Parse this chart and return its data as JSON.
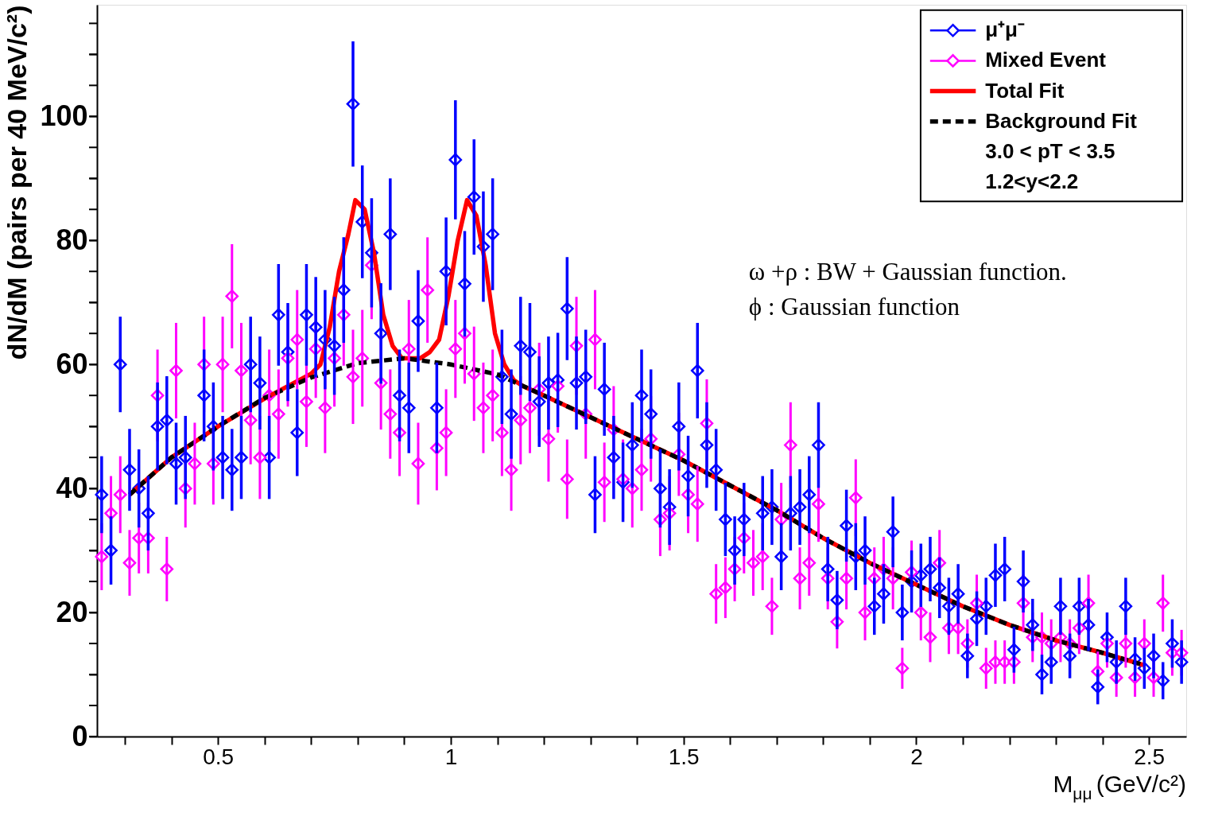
{
  "chart_data": {
    "type": "scatter",
    "xlabel": "M$_{μμ}$ (GeV/c²)",
    "ylabel": "dN/dM (pairs per 40 MeV/c²)",
    "xlim": [
      0.24,
      2.58
    ],
    "ylim": [
      0,
      118
    ],
    "xticks": [
      {
        "value": 0.3,
        "label": null
      },
      {
        "value": 0.4,
        "label": null
      },
      0.5,
      {
        "value": 0.6,
        "label": null
      },
      {
        "value": 0.7,
        "label": null
      },
      {
        "value": 0.8,
        "label": null
      },
      {
        "value": 0.9,
        "label": null
      },
      1,
      {
        "value": 1.1,
        "label": null
      },
      {
        "value": 1.2,
        "label": null
      },
      {
        "value": 1.3,
        "label": null
      },
      {
        "value": 1.4,
        "label": null
      },
      1.5,
      {
        "value": 1.6,
        "label": null
      },
      {
        "value": 1.7,
        "label": null
      },
      {
        "value": 1.8,
        "label": null
      },
      {
        "value": 1.9,
        "label": null
      },
      2,
      {
        "value": 2.1,
        "label": null
      },
      {
        "value": 2.2,
        "label": null
      },
      {
        "value": 2.3,
        "label": null
      },
      {
        "value": 2.4,
        "label": null
      },
      2.5
    ],
    "yticks": [
      0,
      {
        "value": 5,
        "label": null
      },
      {
        "value": 10,
        "label": null
      },
      {
        "value": 15,
        "label": null
      },
      20,
      {
        "value": 25,
        "label": null
      },
      {
        "value": 30,
        "label": null
      },
      {
        "value": 35,
        "label": null
      },
      40,
      {
        "value": 45,
        "label": null
      },
      {
        "value": 50,
        "label": null
      },
      {
        "value": 55,
        "label": null
      },
      60,
      {
        "value": 65,
        "label": null
      },
      {
        "value": 70,
        "label": null
      },
      {
        "value": 75,
        "label": null
      },
      80,
      {
        "value": 85,
        "label": null
      },
      {
        "value": 90,
        "label": null
      },
      {
        "value": 95,
        "label": null
      },
      100,
      {
        "value": 105,
        "label": null
      },
      {
        "value": 110,
        "label": null
      },
      {
        "value": 115,
        "label": null
      }
    ],
    "grid": false,
    "legend": "top right",
    "annotations": [
      "3.0 < pT < 3.5",
      "1.2<y<2.2",
      "ω +ρ : BW + Gaussian function.",
      "ϕ : Gaussian function"
    ],
    "x": [
      0.25,
      0.27,
      0.29,
      0.31,
      0.33,
      0.35,
      0.37,
      0.39,
      0.41,
      0.43,
      0.45,
      0.47,
      0.49,
      0.51,
      0.53,
      0.55,
      0.57,
      0.59,
      0.61,
      0.63,
      0.65,
      0.67,
      0.69,
      0.71,
      0.73,
      0.75,
      0.77,
      0.79,
      0.81,
      0.83,
      0.85,
      0.87,
      0.89,
      0.91,
      0.93,
      0.95,
      0.97,
      0.99,
      1.01,
      1.03,
      1.05,
      1.07,
      1.09,
      1.11,
      1.13,
      1.15,
      1.17,
      1.19,
      1.21,
      1.23,
      1.25,
      1.27,
      1.29,
      1.31,
      1.33,
      1.35,
      1.37,
      1.39,
      1.41,
      1.43,
      1.45,
      1.47,
      1.49,
      1.51,
      1.53,
      1.55,
      1.57,
      1.59,
      1.61,
      1.63,
      1.65,
      1.67,
      1.69,
      1.71,
      1.73,
      1.75,
      1.77,
      1.79,
      1.81,
      1.83,
      1.85,
      1.87,
      1.89,
      1.91,
      1.93,
      1.95,
      1.97,
      1.99,
      2.01,
      2.03,
      2.05,
      2.07,
      2.09,
      2.11,
      2.13,
      2.15,
      2.17,
      2.19,
      2.21,
      2.23,
      2.25,
      2.27,
      2.29,
      2.31,
      2.33,
      2.35,
      2.37,
      2.39,
      2.41,
      2.43,
      2.45,
      2.47,
      2.49,
      2.51,
      2.53,
      2.55,
      2.57
    ],
    "series": [
      {
        "name": "μ⁺μ⁻",
        "marker": "diamond",
        "color": "#0000ff",
        "values": [
          39,
          30,
          60,
          43,
          40,
          36,
          50,
          51,
          44,
          45,
          null,
          55,
          50,
          45,
          43,
          45,
          60,
          57,
          45,
          68,
          62,
          49,
          68,
          66,
          64,
          63,
          72,
          102,
          83,
          78,
          65,
          81,
          55,
          53,
          67,
          null,
          53,
          75,
          93,
          73,
          87,
          79,
          81,
          58,
          52,
          63,
          62,
          54,
          57,
          57.5,
          69,
          57,
          58,
          39,
          56,
          45,
          41,
          47,
          55,
          52,
          40,
          37,
          50,
          42,
          59,
          47,
          43,
          35,
          30,
          35,
          null,
          36,
          37,
          29,
          36,
          37,
          39,
          47,
          27,
          22,
          34,
          29,
          30,
          21,
          23,
          33,
          20,
          25,
          26,
          27,
          24,
          21,
          23,
          13,
          19,
          21,
          26,
          27,
          14,
          25,
          18,
          10,
          12,
          21,
          13,
          21,
          18,
          8,
          16,
          12,
          21,
          12.5,
          11,
          13,
          9,
          15,
          12
        ],
        "errors": [
          6.2,
          5.5,
          7.7,
          6.6,
          6.3,
          6,
          7.1,
          7.1,
          6.6,
          6.7,
          null,
          7.4,
          7.1,
          6.7,
          6.6,
          6.7,
          7.7,
          7.5,
          6.7,
          8.2,
          7.9,
          7,
          8.2,
          8.1,
          8,
          7.9,
          8.5,
          10.1,
          9.1,
          8.8,
          8.1,
          9,
          7.4,
          7.3,
          8.2,
          null,
          7.3,
          8.7,
          9.6,
          8.5,
          9.3,
          8.9,
          9,
          7.6,
          7.2,
          7.9,
          7.9,
          7.3,
          7.5,
          7.6,
          8.3,
          7.5,
          7.6,
          6.2,
          7.5,
          6.7,
          6.4,
          6.9,
          7.4,
          7.2,
          6.3,
          6.1,
          7.1,
          6.5,
          7.7,
          6.9,
          6.6,
          5.9,
          5.5,
          5.9,
          null,
          6,
          6.1,
          5.4,
          6,
          6.1,
          6.2,
          6.9,
          5.2,
          4.7,
          5.8,
          5.4,
          5.5,
          4.6,
          4.8,
          5.7,
          4.5,
          5,
          5.1,
          5.2,
          4.9,
          4.6,
          4.8,
          3.6,
          4.4,
          4.6,
          5.1,
          5.2,
          3.7,
          5,
          4.2,
          3.2,
          3.5,
          4.6,
          3.6,
          4.6,
          4.2,
          2.8,
          4,
          3.5,
          4.6,
          3.5,
          3.3,
          3.6,
          3,
          3.9,
          3.5
        ]
      },
      {
        "name": "Mixed Event",
        "marker": "diamond",
        "color": "#ff00ff",
        "values": [
          29,
          36,
          39,
          28,
          32,
          32,
          55,
          27,
          59,
          40,
          44,
          60,
          44,
          60,
          71,
          59,
          51,
          45,
          55,
          52,
          61,
          64,
          54,
          62.5,
          53,
          61,
          68,
          58,
          61,
          76,
          57,
          52,
          49,
          62.5,
          44,
          72,
          46.5,
          49,
          62.5,
          65,
          58.5,
          53,
          55,
          49,
          43,
          51,
          53,
          56,
          48,
          56.5,
          41.5,
          63,
          52,
          64,
          41,
          49.5,
          41.5,
          40,
          43,
          48,
          35,
          36,
          45.5,
          39,
          37.5,
          50.5,
          23,
          24,
          27,
          32,
          28,
          29,
          21,
          35,
          47,
          25.5,
          28,
          37.5,
          25.5,
          18.5,
          25.5,
          38.5,
          20,
          25.5,
          27,
          25.5,
          11,
          26.5,
          20,
          16,
          28,
          17.5,
          17.5,
          15,
          21.5,
          11,
          12,
          12,
          12,
          21.5,
          16,
          16,
          15,
          16,
          15,
          17.5,
          21.5,
          10.5,
          15,
          9.5,
          15,
          9.5,
          15,
          9.5,
          21.5,
          13.5,
          13.5
        ],
        "errors": [
          5.4,
          6,
          6.2,
          5.3,
          5.7,
          5.7,
          7.4,
          5.2,
          7.7,
          6.3,
          6.6,
          7.7,
          6.6,
          7.7,
          8.4,
          7.7,
          7.1,
          6.7,
          7.4,
          7.2,
          7.8,
          8,
          7.3,
          7.9,
          7.3,
          7.8,
          8.2,
          7.6,
          7.8,
          8.7,
          7.5,
          7.2,
          7,
          7.9,
          6.6,
          8.5,
          6.8,
          7,
          7.9,
          8.1,
          7.6,
          7.3,
          7.4,
          7,
          6.6,
          7.1,
          7.3,
          7.5,
          6.9,
          7.5,
          6.4,
          7.9,
          7.2,
          8,
          6.4,
          7,
          6.4,
          6.3,
          6.6,
          6.9,
          5.9,
          6,
          6.7,
          6.2,
          6.1,
          7.1,
          4.8,
          4.9,
          5.2,
          5.7,
          5.3,
          5.4,
          4.6,
          5.9,
          6.9,
          5,
          5.3,
          6.1,
          5,
          4.3,
          5,
          6.2,
          4.5,
          5,
          5.2,
          5,
          3.3,
          5.1,
          4.5,
          4,
          5.3,
          4.2,
          4.2,
          3.9,
          4.6,
          3.3,
          3.5,
          3.5,
          3.5,
          4.6,
          4,
          4,
          3.9,
          4,
          3.9,
          4.2,
          4.6,
          3.2,
          3.9,
          3.1,
          3.9,
          3.1,
          3.9,
          3.1,
          4.6,
          3.7,
          3.7
        ]
      },
      {
        "name": "Total Fit",
        "type": "line",
        "line_style": "solid",
        "color": "#ff0000",
        "x": [
          0.31,
          0.4,
          0.5,
          0.6,
          0.7,
          0.72,
          0.74,
          0.76,
          0.78,
          0.795,
          0.815,
          0.835,
          0.855,
          0.875,
          0.895,
          0.915,
          0.935,
          0.955,
          0.975,
          0.995,
          1.015,
          1.035,
          1.055,
          1.075,
          1.095,
          1.115,
          1.135,
          1.155,
          1.2,
          1.3,
          1.4,
          1.5,
          1.6,
          1.7,
          1.8,
          1.9,
          2.0,
          2.1,
          2.2,
          2.3,
          2.4,
          2.49
        ],
        "values": [
          39,
          45,
          50,
          54.5,
          58.5,
          60,
          66,
          75,
          81,
          86.5,
          85,
          78,
          68,
          63,
          61,
          61,
          61,
          62,
          64,
          71,
          80,
          86.5,
          84,
          76,
          65,
          60,
          57.5,
          56.5,
          55,
          51.5,
          48,
          44.5,
          40.5,
          36.5,
          32,
          28,
          24.5,
          21,
          18,
          15.5,
          13.5,
          11.5
        ]
      },
      {
        "name": "Background Fit",
        "type": "line",
        "line_style": "dashed",
        "color": "#000000",
        "x": [
          0.31,
          0.4,
          0.5,
          0.6,
          0.7,
          0.8,
          0.9,
          1.0,
          1.1,
          1.2,
          1.3,
          1.4,
          1.5,
          1.6,
          1.7,
          1.8,
          1.9,
          2.0,
          2.1,
          2.2,
          2.3,
          2.4,
          2.49
        ],
        "values": [
          39,
          45,
          50,
          54.6,
          57.9,
          60.2,
          61,
          60,
          58.4,
          55,
          51.5,
          48,
          44.5,
          40.5,
          36.5,
          32,
          28,
          24.5,
          21,
          18,
          15.5,
          13.5,
          11.5
        ]
      }
    ]
  }
}
